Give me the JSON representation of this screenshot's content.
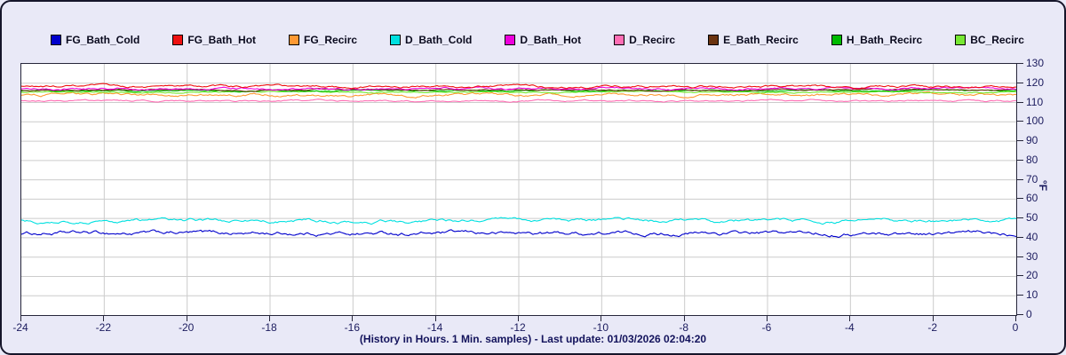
{
  "panel": {
    "background_color": "#e9e9f7",
    "border_color": "#15152a",
    "plot_background": "#ffffff",
    "grid_color": "#cccccc",
    "axis_text_color": "#1b1b5e"
  },
  "legend": {
    "items": [
      {
        "label": "FG_Bath_Cold",
        "color": "#0000cc"
      },
      {
        "label": "FG_Bath_Hot",
        "color": "#ee1111"
      },
      {
        "label": "FG_Recirc",
        "color": "#ff9933"
      },
      {
        "label": "D_Bath_Cold",
        "color": "#00e0e0"
      },
      {
        "label": "D_Bath_Hot",
        "color": "#ee00dd"
      },
      {
        "label": "D_Recirc",
        "color": "#ff6eb4"
      },
      {
        "label": "E_Bath_Recirc",
        "color": "#6b3410"
      },
      {
        "label": "H_Bath_Recirc",
        "color": "#00bb00"
      },
      {
        "label": "BC_Recirc",
        "color": "#77e833"
      }
    ]
  },
  "caption": "(History in Hours. 1 Min. samples) - Last update: 01/03/2026 02:04:20",
  "last_update": "01/03/2026 02:04:20",
  "chart_data": {
    "type": "line",
    "title": "",
    "xlabel": "(History in Hours. 1 Min. samples)",
    "ylabel": "°F",
    "x_axis": {
      "min": -24,
      "max": 0,
      "tick_step": 2,
      "unit": "hours"
    },
    "y_axis": {
      "min": 0,
      "max": 130,
      "tick_step": 10,
      "unit": "°F",
      "side": "right"
    },
    "grid": true,
    "legend_position": "top",
    "series": [
      {
        "name": "FG_Bath_Cold",
        "color": "#0000cc",
        "approx_mean": 42.3,
        "jitter": 1.5
      },
      {
        "name": "FG_Bath_Hot",
        "color": "#ee1111",
        "approx_mean": 118.2,
        "jitter": 0.9
      },
      {
        "name": "FG_Recirc",
        "color": "#ff9933",
        "approx_mean": 114.0,
        "jitter": 1.0
      },
      {
        "name": "D_Bath_Cold",
        "color": "#00e0e0",
        "approx_mean": 48.7,
        "jitter": 1.3
      },
      {
        "name": "D_Bath_Hot",
        "color": "#ee00dd",
        "approx_mean": 117.1,
        "jitter": 0.8
      },
      {
        "name": "D_Recirc",
        "color": "#ff6eb4",
        "approx_mean": 110.9,
        "jitter": 0.6
      },
      {
        "name": "E_Bath_Recirc",
        "color": "#6b3410",
        "approx_mean": 116.5,
        "jitter": 0.5
      },
      {
        "name": "H_Bath_Recirc",
        "color": "#00bb00",
        "approx_mean": 116.1,
        "jitter": 0.5
      },
      {
        "name": "BC_Recirc",
        "color": "#77e833",
        "approx_mean": 115.4,
        "jitter": 0.5
      }
    ]
  }
}
